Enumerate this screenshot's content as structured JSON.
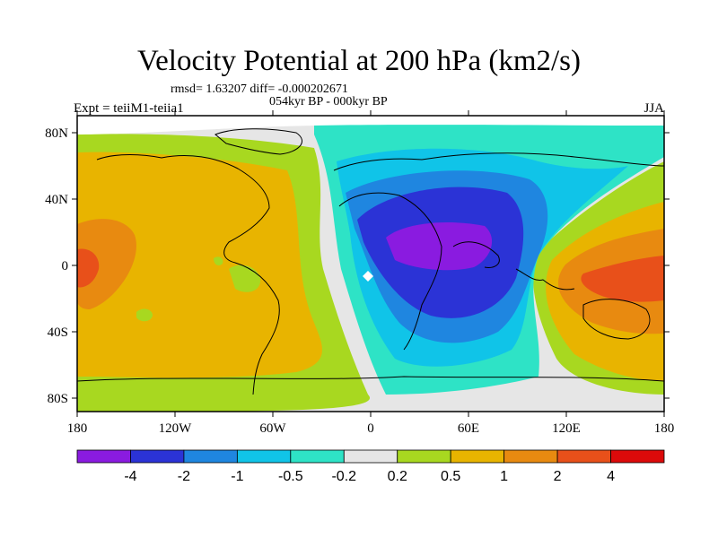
{
  "title": "Velocity Potential at 200 hPa (km2/s)",
  "stats_line": "rmsd= 1.63207 diff= -0.000202671",
  "subtitle": "054kyr BP - 000kyr BP",
  "left_label": "Expt = teiiM1-teiia1",
  "right_label": "JJA",
  "lat_ticks": [
    "80N",
    "40N",
    "0",
    "40S",
    "80S"
  ],
  "lon_ticks": [
    "180",
    "120W",
    "60W",
    "0",
    "60E",
    "120E",
    "180"
  ],
  "colorbar": {
    "colors": [
      "#8a1be0",
      "#2b33d6",
      "#1f86e0",
      "#10c4e8",
      "#2ee3c6",
      "#e6e6e6",
      "#a8d820",
      "#e8b400",
      "#e88a10",
      "#e8501a",
      "#dc0a0a"
    ],
    "labels": [
      "-4",
      "-2",
      "-1",
      "-0.5",
      "-0.2",
      "0.2",
      "0.5",
      "1",
      "2",
      "4"
    ]
  }
}
